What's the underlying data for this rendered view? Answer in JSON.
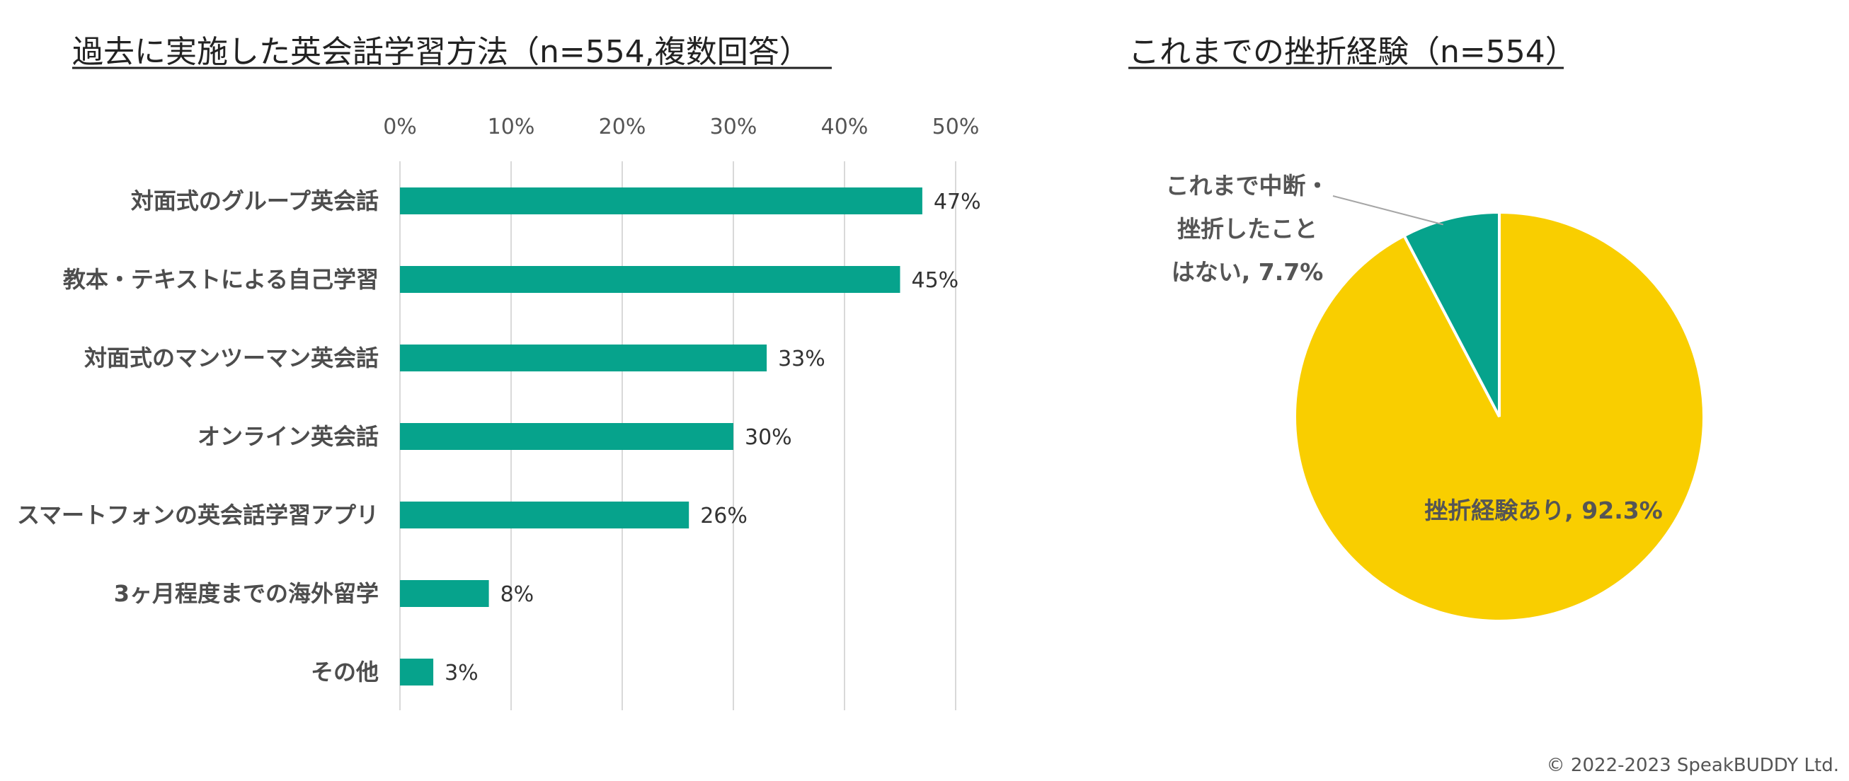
{
  "chart_data": [
    {
      "type": "bar",
      "orientation": "horizontal",
      "title": "過去に実施した英会話学習方法（n=554,複数回答）",
      "categories": [
        "対面式のグループ英会話",
        "教本・テキストによる自己学習",
        "対面式のマンツーマン英会話",
        "オンライン英会話",
        "スマートフォンの英会話学習アプリ",
        "3ヶ月程度までの海外留学",
        "その他"
      ],
      "values": [
        47,
        45,
        33,
        30,
        26,
        8,
        3
      ],
      "value_labels": [
        "47%",
        "45%",
        "33%",
        "30%",
        "26%",
        "8%",
        "3%"
      ],
      "xlim": [
        0,
        50
      ],
      "x_ticks": [
        0,
        10,
        20,
        30,
        40,
        50
      ],
      "x_tick_labels": [
        "0%",
        "10%",
        "20%",
        "30%",
        "40%",
        "50%"
      ],
      "x_axis_position": "top",
      "grid": true,
      "bar_color": "#06A38C"
    },
    {
      "type": "pie",
      "title": "これまでの挫折経験（n=554）",
      "slices": [
        {
          "label": "挫折経験あり, 92.3%",
          "value": 92.3,
          "color": "#F9CE00"
        },
        {
          "label_lines": [
            "これまで中断・",
            "挫折したこと",
            "はない, 7.7%"
          ],
          "value": 7.7,
          "color": "#06A38C"
        }
      ]
    }
  ],
  "footer": {
    "copyright": "© 2022-2023 SpeakBUDDY Ltd."
  }
}
